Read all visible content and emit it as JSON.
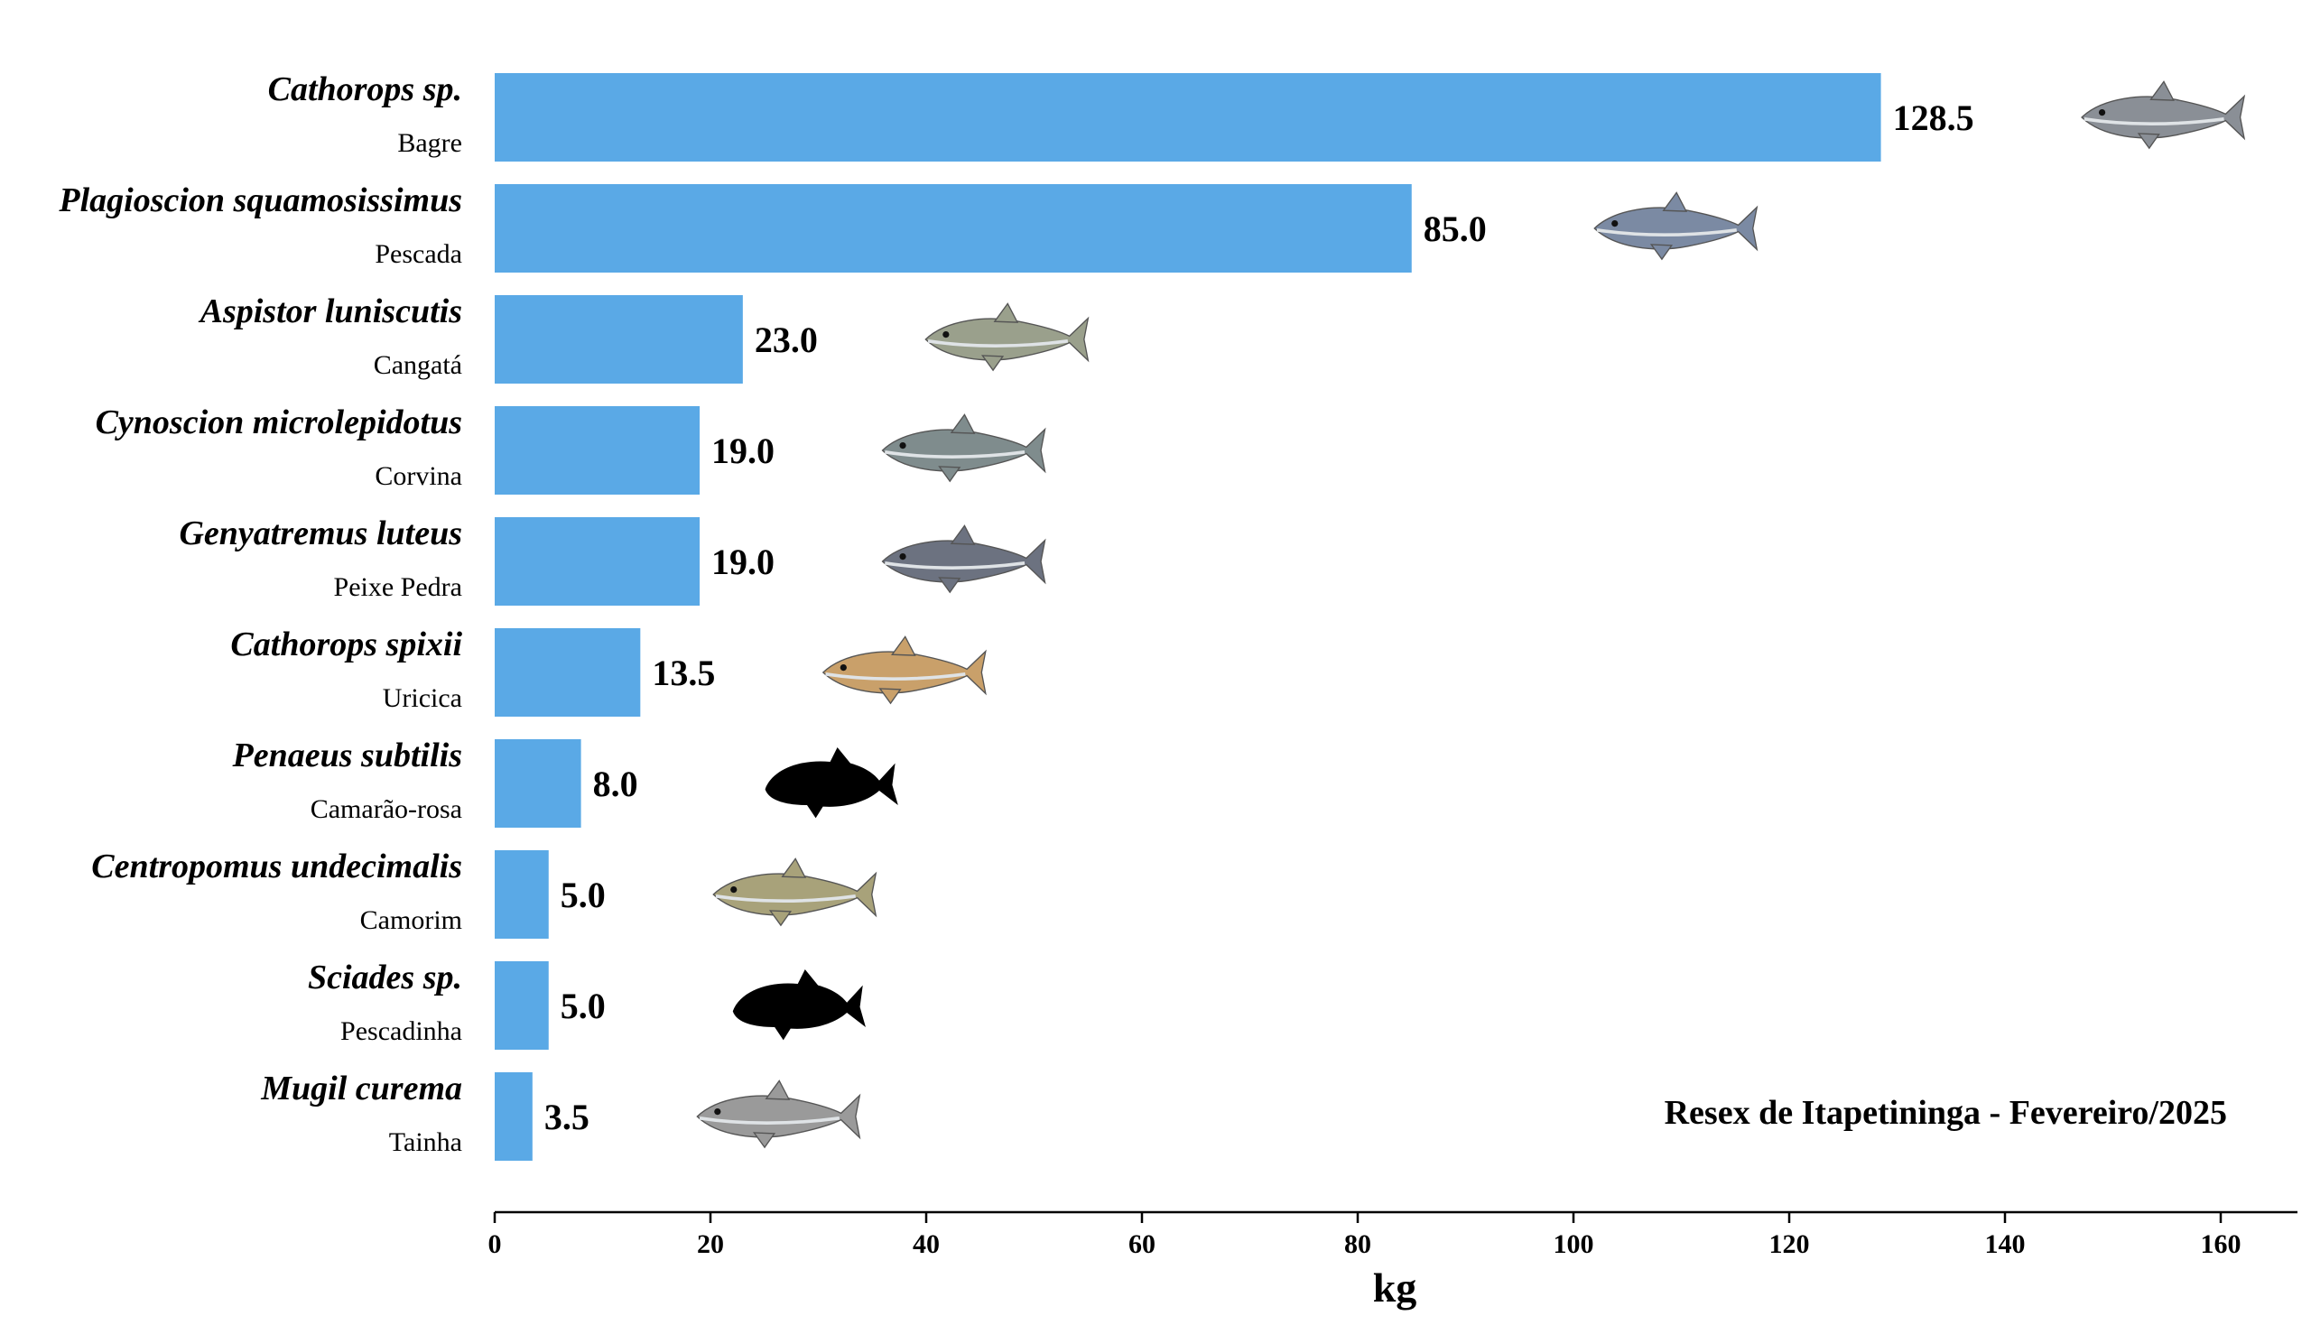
{
  "chart_data": {
    "type": "bar",
    "orientation": "horizontal",
    "title": "",
    "xlabel": "kg",
    "ylabel": "",
    "xlim": [
      0,
      167
    ],
    "xticks": [
      0,
      20,
      40,
      60,
      80,
      100,
      120,
      140,
      160
    ],
    "grid": false,
    "bar_color": "#5aa9e6",
    "annotation": "Resex de Itapetininga - Fevereiro/2025",
    "categories": [
      {
        "scientific": "Cathorops sp.",
        "common": "Bagre",
        "value": 128.5,
        "label": "128.5",
        "icon": "catfish-icon"
      },
      {
        "scientific": "Plagioscion squamosissimus",
        "common": "Pescada",
        "value": 85.0,
        "label": "85.0",
        "icon": "croaker-fish-icon"
      },
      {
        "scientific": "Aspistor luniscutis",
        "common": "Cangatá",
        "value": 23.0,
        "label": "23.0",
        "icon": "sea-catfish-icon"
      },
      {
        "scientific": "Cynoscion microlepidotus",
        "common": "Corvina",
        "value": 19.0,
        "label": "19.0",
        "icon": "weakfish-icon"
      },
      {
        "scientific": "Genyatremus luteus",
        "common": "Peixe Pedra",
        "value": 19.0,
        "label": "19.0",
        "icon": "grunt-fish-icon"
      },
      {
        "scientific": "Cathorops spixii",
        "common": "Uricica",
        "value": 13.5,
        "label": "13.5",
        "icon": "small-catfish-icon"
      },
      {
        "scientific": "Penaeus subtilis",
        "common": "Camarão-rosa",
        "value": 8.0,
        "label": "8.0",
        "icon": "fish-silhouette-icon"
      },
      {
        "scientific": "Centropomus undecimalis",
        "common": "Camorim",
        "value": 5.0,
        "label": "5.0",
        "icon": "snook-fish-icon"
      },
      {
        "scientific": "Sciades sp.",
        "common": "Pescadinha",
        "value": 5.0,
        "label": "5.0",
        "icon": "fish-silhouette-icon"
      },
      {
        "scientific": "Mugil curema",
        "common": "Tainha",
        "value": 3.5,
        "label": "3.5",
        "icon": "mullet-fish-icon"
      }
    ]
  }
}
